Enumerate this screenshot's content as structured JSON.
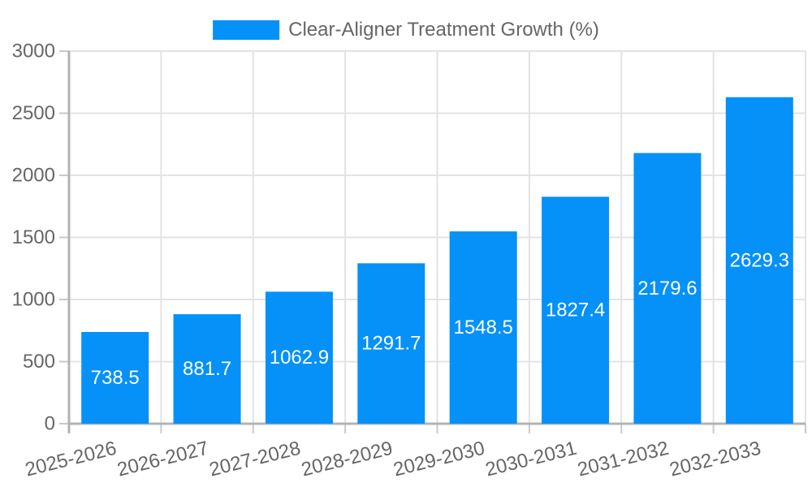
{
  "chart_data": {
    "type": "bar",
    "title": "",
    "legend": {
      "label": "Clear-Aligner Treatment Growth (%)",
      "position": "top"
    },
    "series_label": "Clear-Aligner Treatment Growth (%)",
    "categories": [
      "2025-2026",
      "2026-2027",
      "2027-2028",
      "2028-2029",
      "2029-2030",
      "2030-2031",
      "2031-2032",
      "2032-2033"
    ],
    "values": [
      738.5,
      881.7,
      1062.9,
      1291.7,
      1548.5,
      1827.4,
      2179.6,
      2629.3
    ],
    "value_labels": [
      "738.5",
      "881.7",
      "1062.9",
      "1291.7",
      "1548.5",
      "1827.4",
      "2179.6",
      "2629.3"
    ],
    "xlabel": "",
    "ylabel": "",
    "ylim": [
      0,
      3000
    ],
    "yticks": [
      0,
      500,
      1000,
      1500,
      2000,
      2500,
      3000
    ],
    "grid": true,
    "x_label_rotation_deg": -14,
    "colors": {
      "bar": "#0591F8",
      "value_label": "#FFFFFF",
      "axis_text": "#666666",
      "grid": "#E3E3E3",
      "tick": "#C9C9C9",
      "axis_border": "#B3B3B3",
      "background": "#FFFFFF"
    }
  }
}
